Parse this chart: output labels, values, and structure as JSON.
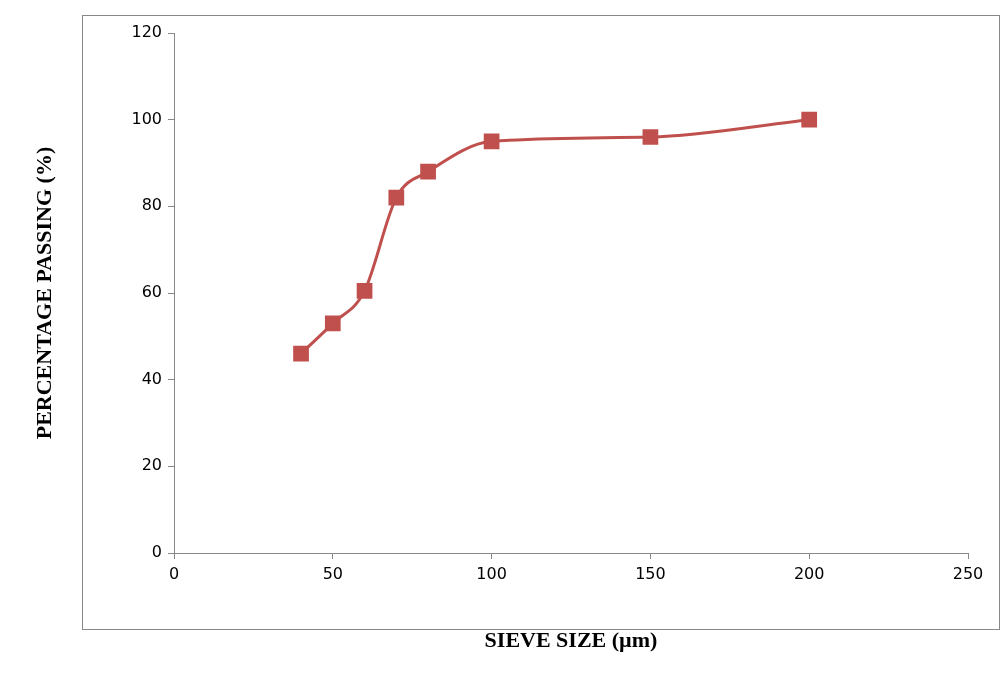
{
  "chart_data": {
    "type": "line",
    "xlabel": "SIEVE SIZE (µm)",
    "ylabel": "PERCENTAGE PASSING (%)",
    "x": [
      40,
      50,
      60,
      70,
      80,
      100,
      150,
      200
    ],
    "series": [
      {
        "color": "#c0504d",
        "values": [
          46,
          53,
          60.5,
          82,
          88,
          95,
          96,
          100
        ]
      }
    ],
    "xlim": [
      0,
      250
    ],
    "xticks": [
      0,
      50,
      100,
      150,
      200,
      250
    ],
    "ylim": [
      0,
      120
    ],
    "yticks": [
      0,
      20,
      40,
      60,
      80,
      100,
      120
    ],
    "grid": false,
    "legend": false,
    "marker": "square",
    "line_style": "solid"
  }
}
